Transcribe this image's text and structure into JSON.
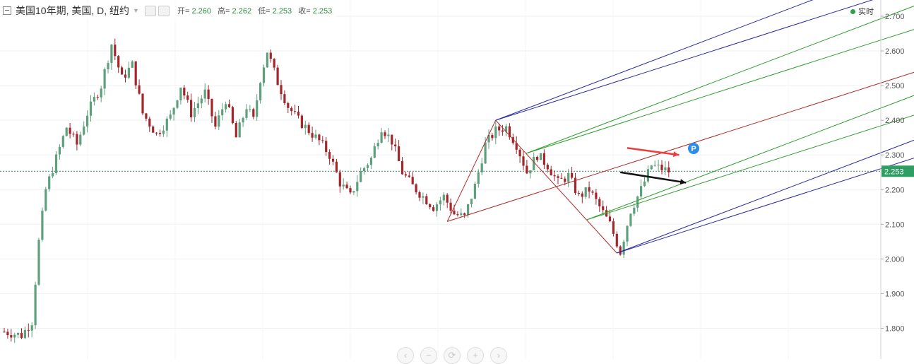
{
  "header": {
    "symbol": "美国10年期, 美国, D, 纽约",
    "open_label": "开=",
    "open": "2.260",
    "high_label": "高=",
    "high": "2.262",
    "low_label": "低=",
    "low": "2.253",
    "close_label": "收=",
    "close": "2.253"
  },
  "realtime_label": "实时",
  "current_price": "2.253",
  "marker_label": "P",
  "nav": {
    "scroll_left": "‹",
    "zoom_out": "−",
    "reset": "⟳",
    "zoom_in": "+",
    "scroll_right": "›"
  },
  "colors": {
    "up": "#5fa07c",
    "down": "#a3262b",
    "pitchfork_outer": "#2a2aa0",
    "pitchfork_mid": "#2e9e2e",
    "pitchfork_median": "#b02a2a",
    "arrow_red": "#ee3b3b",
    "arrow_black": "#111111",
    "marker": "#2d8ce6"
  },
  "chart_data": {
    "type": "candlestick",
    "y_axis": {
      "position": "right",
      "range": [
        1.72,
        2.715
      ],
      "ticks": [
        "2.700",
        "2.600",
        "2.500",
        "2.400",
        "2.300",
        "2.200",
        "2.100",
        "2.000",
        "1.900",
        "1.800"
      ]
    },
    "bars_shown": 193,
    "current_price_line": 2.253,
    "close_path_anchors": [
      [
        0,
        1.79
      ],
      [
        5,
        1.78
      ],
      [
        8,
        1.82
      ],
      [
        10,
        2.05
      ],
      [
        12,
        2.2
      ],
      [
        14,
        2.26
      ],
      [
        18,
        2.38
      ],
      [
        21,
        2.33
      ],
      [
        24,
        2.42
      ],
      [
        28,
        2.5
      ],
      [
        31,
        2.62
      ],
      [
        34,
        2.52
      ],
      [
        37,
        2.56
      ],
      [
        40,
        2.42
      ],
      [
        44,
        2.36
      ],
      [
        48,
        2.41
      ],
      [
        51,
        2.5
      ],
      [
        54,
        2.42
      ],
      [
        58,
        2.48
      ],
      [
        61,
        2.38
      ],
      [
        64,
        2.46
      ],
      [
        67,
        2.35
      ],
      [
        70,
        2.44
      ],
      [
        72,
        2.4
      ],
      [
        74,
        2.52
      ],
      [
        76,
        2.6
      ],
      [
        79,
        2.51
      ],
      [
        82,
        2.44
      ],
      [
        85,
        2.4
      ],
      [
        88,
        2.37
      ],
      [
        91,
        2.34
      ],
      [
        94,
        2.3
      ],
      [
        97,
        2.22
      ],
      [
        100,
        2.18
      ],
      [
        103,
        2.25
      ],
      [
        106,
        2.29
      ],
      [
        109,
        2.38
      ],
      [
        112,
        2.34
      ],
      [
        115,
        2.25
      ],
      [
        118,
        2.21
      ],
      [
        121,
        2.18
      ],
      [
        124,
        2.15
      ],
      [
        127,
        2.18
      ],
      [
        130,
        2.13
      ],
      [
        133,
        2.12
      ],
      [
        136,
        2.21
      ],
      [
        139,
        2.33
      ],
      [
        142,
        2.37
      ],
      [
        145,
        2.38
      ],
      [
        148,
        2.33
      ],
      [
        151,
        2.25
      ],
      [
        154,
        2.3
      ],
      [
        157,
        2.27
      ],
      [
        160,
        2.22
      ],
      [
        163,
        2.24
      ],
      [
        166,
        2.18
      ],
      [
        169,
        2.2
      ],
      [
        172,
        2.15
      ],
      [
        175,
        2.1
      ],
      [
        178,
        2.02
      ],
      [
        181,
        2.14
      ],
      [
        184,
        2.2
      ],
      [
        187,
        2.27
      ],
      [
        190,
        2.26
      ],
      [
        192,
        2.253
      ]
    ],
    "pitchforks": [
      {
        "points": [
          [
            128,
            2.108
          ],
          [
            142,
            2.4
          ],
          [
            177,
            2.017
          ]
        ],
        "median_label": "",
        "levels": [
          -1,
          -0.5,
          0,
          0.5,
          1
        ]
      },
      {
        "points": [
          [
            133,
            2.108
          ],
          [
            142,
            2.4
          ],
          [
            177,
            2.017
          ]
        ],
        "median_label": "",
        "levels": [
          -1,
          -0.5,
          0,
          0.5,
          1
        ]
      }
    ],
    "arrows": [
      {
        "color": "red",
        "from": [
          180,
          2.32
        ],
        "to": [
          195,
          2.3
        ]
      },
      {
        "color": "black",
        "from": [
          178,
          2.25
        ],
        "to": [
          197,
          2.22
        ]
      }
    ]
  }
}
